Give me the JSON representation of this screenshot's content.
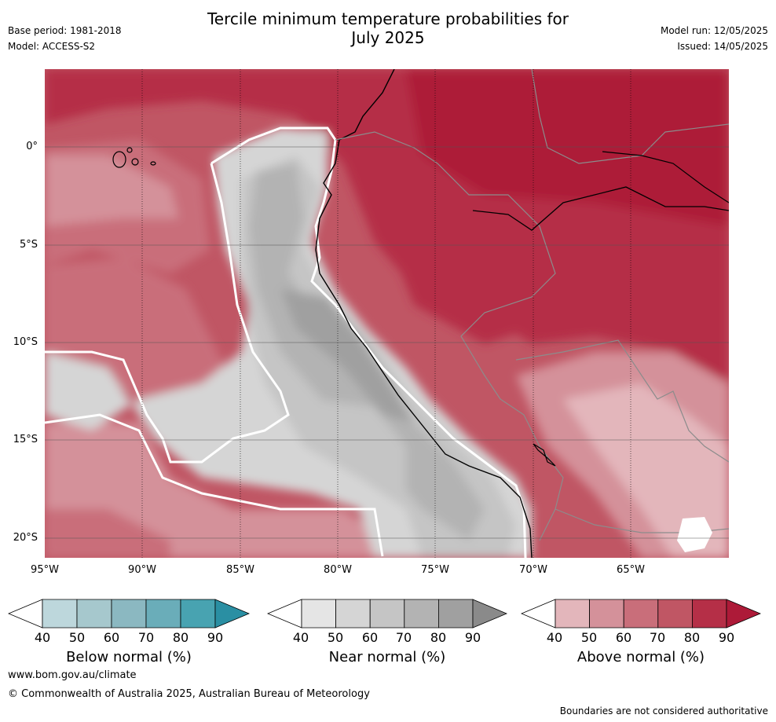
{
  "header": {
    "title_line1": "Tercile minimum temperature probabilities for",
    "title_line2": "July 2025",
    "base_period": "Base period: 1981-2018",
    "model": "Model: ACCESS-S2",
    "model_run": "Model run: 12/05/2025",
    "issued": "Issued: 14/05/2025"
  },
  "map": {
    "region": "west coast of South America and eastern Pacific",
    "lat_labels": [
      "0°",
      "5°S",
      "10°S",
      "15°S",
      "20°S"
    ],
    "lon_labels": [
      "95°W",
      "90°W",
      "85°W",
      "80°W",
      "75°W",
      "70°W",
      "65°W"
    ]
  },
  "colorbars": [
    {
      "label": "Below normal (%)",
      "ticks": [
        "40",
        "50",
        "60",
        "70",
        "80",
        "90"
      ],
      "colors": [
        "#ffffff",
        "#bdd7dc",
        "#a6c8cd",
        "#8bb8c1",
        "#6aadb9",
        "#48a3b1",
        "#2a8fa3"
      ]
    },
    {
      "label": "Near normal (%)",
      "ticks": [
        "40",
        "50",
        "60",
        "70",
        "80",
        "90"
      ],
      "colors": [
        "#ffffff",
        "#e5e5e5",
        "#d5d5d5",
        "#c5c5c5",
        "#b3b3b3",
        "#a0a0a0",
        "#8a8a8a"
      ]
    },
    {
      "label": "Above normal (%)",
      "ticks": [
        "40",
        "50",
        "60",
        "70",
        "80",
        "90"
      ],
      "colors": [
        "#ffffff",
        "#e3b6bb",
        "#d4919a",
        "#c96e7a",
        "#c05664",
        "#b52f47",
        "#ad1a38"
      ]
    }
  ],
  "footer": {
    "website": "www.bom.gov.au/climate",
    "copyright": "© Commonwealth of Australia 2025, Australian Bureau of Meteorology",
    "disclaimer": "Boundaries are not considered authoritative"
  }
}
